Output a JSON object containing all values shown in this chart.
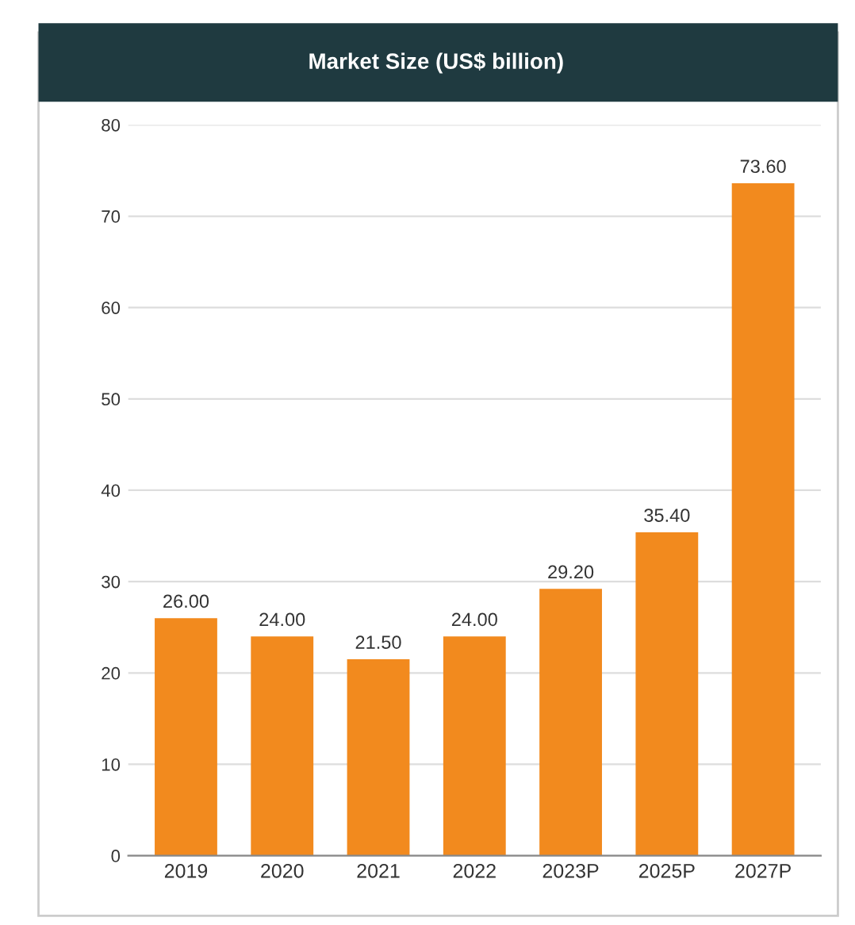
{
  "chart_data": {
    "type": "bar",
    "title": "Market Size (US$ billion)",
    "categories": [
      "2019",
      "2020",
      "2021",
      "2022",
      "2023P",
      "2025P",
      "2027P"
    ],
    "values": [
      26.0,
      24.0,
      21.5,
      24.0,
      29.2,
      35.4,
      73.6
    ],
    "value_labels": [
      "26.00",
      "24.00",
      "21.50",
      "24.00",
      "29.20",
      "35.40",
      "73.60"
    ],
    "color": "#f28a1e",
    "ylim": [
      0,
      80
    ],
    "yticks": [
      0,
      10,
      20,
      30,
      40,
      50,
      60,
      70,
      80
    ],
    "grid": "y"
  }
}
